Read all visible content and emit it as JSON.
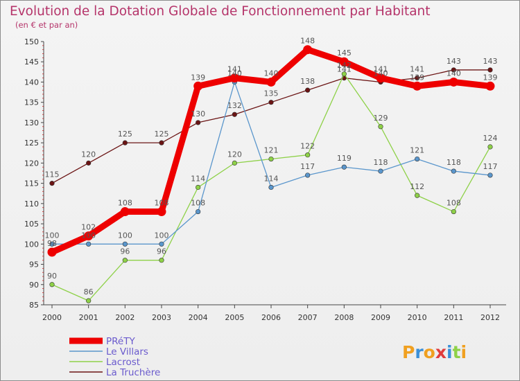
{
  "chart_data": {
    "type": "line",
    "title": "Evolution de la Dotation Globale de Fonctionnement par Habitant",
    "subtitle": "(en € et par an)",
    "x": [
      "2000",
      "2001",
      "2002",
      "2003",
      "2004",
      "2005",
      "2006",
      "2007",
      "2008",
      "2009",
      "2010",
      "2011",
      "2012"
    ],
    "ylim": [
      85,
      150
    ],
    "yticks": [
      85,
      90,
      95,
      100,
      105,
      110,
      115,
      120,
      125,
      130,
      135,
      140,
      145,
      150
    ],
    "grid": false,
    "legend_position": "bottom-left",
    "series": [
      {
        "name": "PRéTY",
        "color": "#ee0000",
        "values": [
          98,
          102,
          108,
          108,
          139,
          141,
          140,
          148,
          145,
          141,
          139,
          140,
          139
        ]
      },
      {
        "name": "Le Villars",
        "color": "#5a96cc",
        "values": [
          100,
          100,
          100,
          100,
          108,
          140,
          114,
          117,
          119,
          118,
          121,
          118,
          117
        ]
      },
      {
        "name": "Lacrost",
        "color": "#8ed148",
        "values": [
          90,
          86,
          96,
          96,
          114,
          120,
          121,
          122,
          142,
          129,
          112,
          108,
          124
        ]
      },
      {
        "name": "La Truchère",
        "color": "#6b1414",
        "values": [
          115,
          120,
          125,
          125,
          130,
          132,
          135,
          138,
          141,
          140,
          141,
          143,
          143
        ]
      }
    ]
  },
  "logo": {
    "text": "Proxiti"
  }
}
